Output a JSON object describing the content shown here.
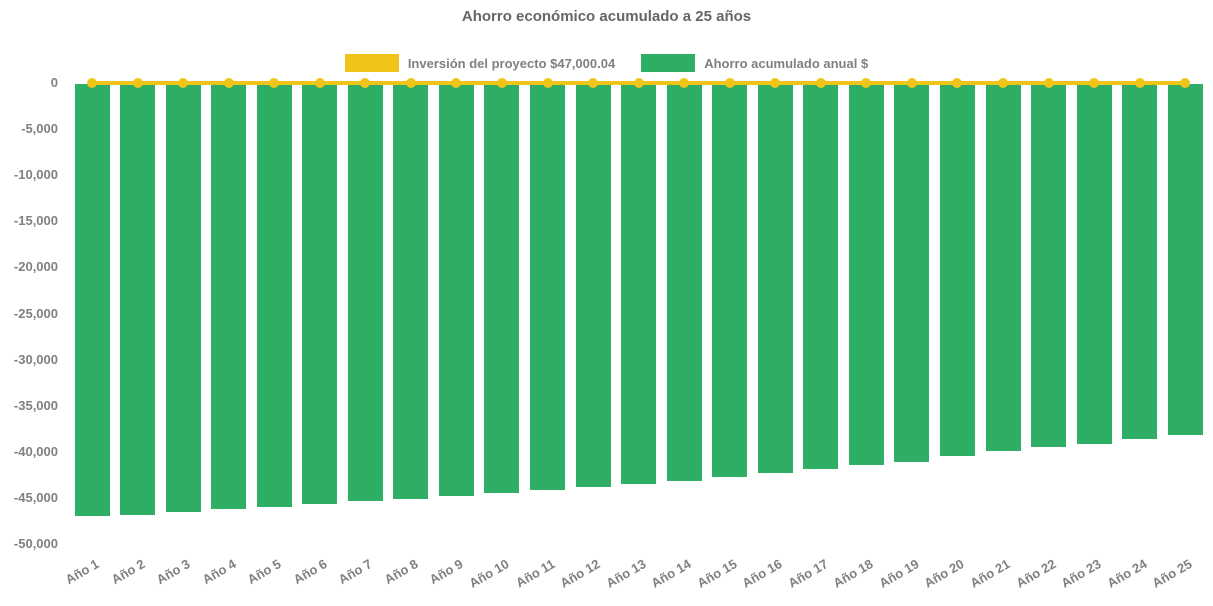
{
  "title": "Ahorro económico acumulado a 25 años",
  "legend": {
    "position": "top",
    "items": [
      {
        "label": "Inversión del proyecto $47,000.04",
        "color": "#F0C419",
        "marker": "line"
      },
      {
        "label": "Ahorro acumulado anual $",
        "color": "#2EAD64",
        "marker": "bar"
      }
    ]
  },
  "colors": {
    "background": "#ffffff",
    "title_text": "#666666",
    "tick_text": "#808080",
    "investment_line": "#F0C419",
    "savings_bar": "#2EAD64"
  },
  "chart_data": {
    "type": "bar",
    "title": "Ahorro económico acumulado a 25 años",
    "xlabel": "",
    "ylabel": "",
    "ylim": [
      -50000,
      0
    ],
    "yticks": [
      0,
      -5000,
      -10000,
      -15000,
      -20000,
      -25000,
      -30000,
      -35000,
      -40000,
      -45000,
      -50000
    ],
    "grid": false,
    "legend_position": "top",
    "categories": [
      "Año 1",
      "Año 2",
      "Año 3",
      "Año 4",
      "Año 5",
      "Año 6",
      "Año 7",
      "Año 8",
      "Año 9",
      "Año 10",
      "Año 11",
      "Año 12",
      "Año 13",
      "Año 14",
      "Año 15",
      "Año 16",
      "Año 17",
      "Año 18",
      "Año 19",
      "Año 20",
      "Año 21",
      "Año 22",
      "Año 23",
      "Año 24",
      "Año 25"
    ],
    "series": [
      {
        "name": "Inversión del proyecto $47,000.04",
        "type": "line",
        "color": "#F0C419",
        "values": [
          0,
          0,
          0,
          0,
          0,
          0,
          0,
          0,
          0,
          0,
          0,
          0,
          0,
          0,
          0,
          0,
          0,
          0,
          0,
          0,
          0,
          0,
          0,
          0,
          0
        ]
      },
      {
        "name": "Ahorro acumulado anual $",
        "type": "bar",
        "color": "#2EAD64",
        "values": [
          -47000,
          -46860,
          -46570,
          -46240,
          -45960,
          -45700,
          -45380,
          -45090,
          -44830,
          -44510,
          -44150,
          -43860,
          -43500,
          -43140,
          -42770,
          -42340,
          -41910,
          -41470,
          -41090,
          -40500,
          -39920,
          -39500,
          -39200,
          -38630,
          -38160
        ]
      }
    ]
  }
}
